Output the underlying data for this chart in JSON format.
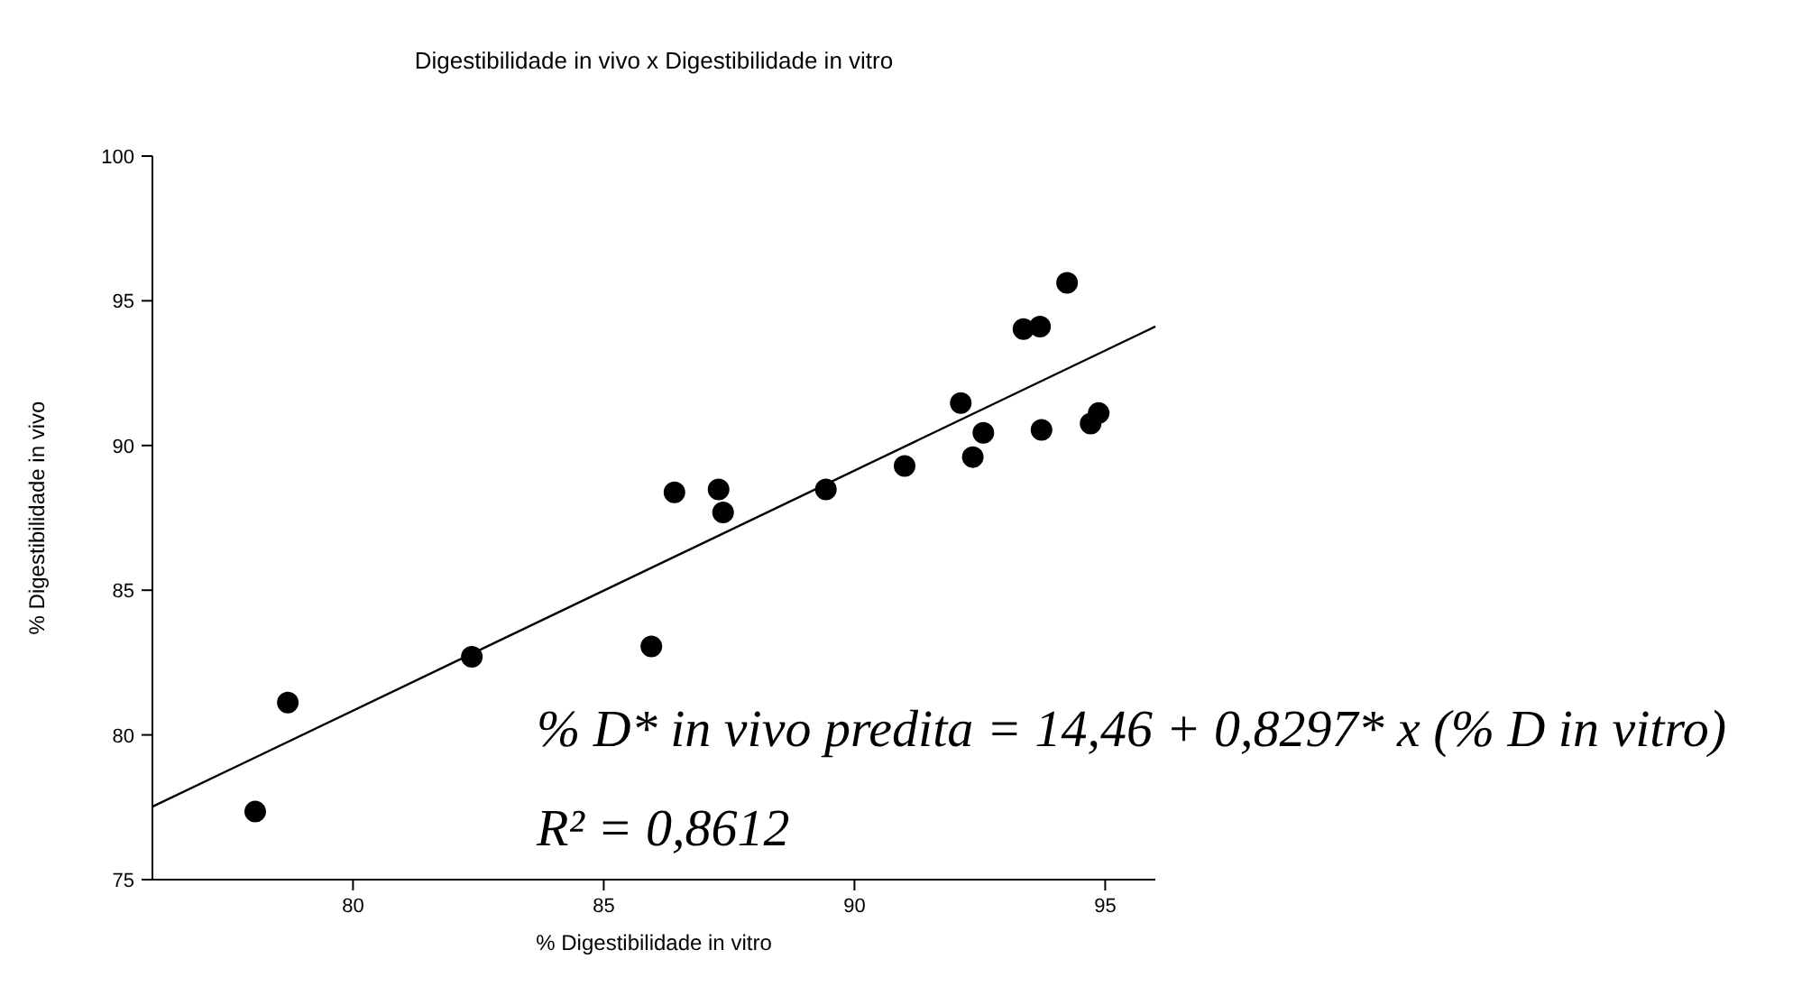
{
  "chart_data": {
    "type": "scatter",
    "title": "Digestibilidade in vivo x Digestibilidade in vitro",
    "xlabel": "% Digestibilidade in vitro",
    "ylabel": "% Digestibilidade in vivo",
    "x": [
      78.05,
      78.7,
      82.37,
      85.95,
      86.41,
      87.29,
      87.38,
      89.43,
      91.0,
      92.12,
      92.36,
      92.57,
      93.37,
      93.7,
      93.73,
      94.24,
      94.71,
      94.87
    ],
    "series": [
      {
        "marker": "circle",
        "color": "#000000",
        "values": [
          77.35,
          81.12,
          82.7,
          83.06,
          88.38,
          88.48,
          87.69,
          88.48,
          89.29,
          91.47,
          89.6,
          90.44,
          94.02,
          94.11,
          90.54,
          95.62,
          90.76,
          91.12
        ]
      },
      {
        "type": "line",
        "marker": "none",
        "color": "#000000",
        "x": [
          76,
          96
        ],
        "values": [
          77.52,
          94.11
        ]
      }
    ],
    "grid": false,
    "xlim": [
      76,
      96
    ],
    "xticks": [
      80,
      85,
      90,
      95
    ],
    "ylim": [
      75,
      100
    ],
    "yticks": [
      75,
      80,
      85,
      90,
      95,
      100
    ],
    "annotations": [
      "% D* in vivo predita = 14,46 + 0,8297* x (% D in vitro)",
      "R² = 0,8612"
    ]
  }
}
